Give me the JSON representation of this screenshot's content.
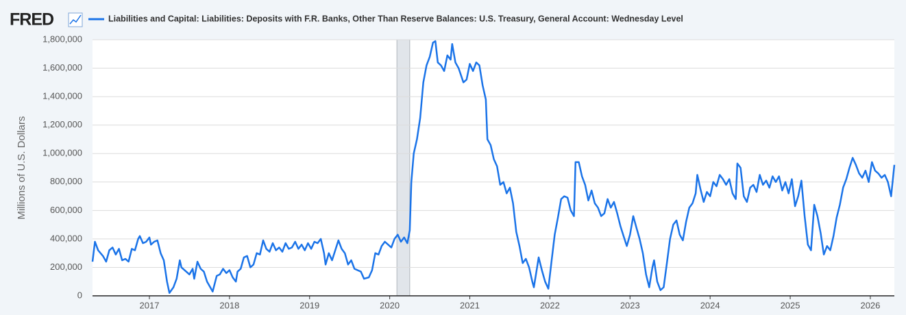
{
  "logo": "FRED",
  "chart_data": {
    "type": "line",
    "series": [
      {
        "name": "Liabilities and Capital: Liabilities: Deposits with F.R. Banks, Other Than Reserve Balances: U.S. Treasury, General Account: Wednesday Level",
        "color": "#1a73e8",
        "values": [
          240000,
          380000,
          320000,
          280000,
          240000,
          320000,
          340000,
          290000,
          330000,
          250000,
          260000,
          240000,
          330000,
          320000,
          400000,
          420000,
          370000,
          380000,
          410000,
          360000,
          380000,
          390000,
          300000,
          250000,
          100000,
          20000,
          60000,
          120000,
          250000,
          200000,
          170000,
          150000,
          190000,
          120000,
          240000,
          190000,
          170000,
          100000,
          60000,
          30000,
          140000,
          150000,
          190000,
          160000,
          180000,
          130000,
          100000,
          170000,
          190000,
          270000,
          280000,
          200000,
          220000,
          300000,
          290000,
          390000,
          330000,
          310000,
          370000,
          320000,
          340000,
          310000,
          370000,
          330000,
          340000,
          380000,
          330000,
          360000,
          320000,
          370000,
          330000,
          380000,
          370000,
          400000,
          300000,
          220000,
          300000,
          250000,
          320000,
          390000,
          330000,
          300000,
          220000,
          250000,
          190000,
          180000,
          170000,
          120000,
          130000,
          180000,
          300000,
          290000,
          350000,
          380000,
          360000,
          340000,
          400000,
          430000,
          380000,
          410000,
          370000,
          460000,
          800000,
          1000000,
          1100000,
          1250000,
          1500000,
          1620000,
          1680000,
          1780000,
          1790000,
          1640000,
          1620000,
          1580000,
          1690000,
          1660000,
          1770000,
          1640000,
          1600000,
          1500000,
          1520000,
          1630000,
          1580000,
          1640000,
          1620000,
          1480000,
          1380000,
          1100000,
          1060000,
          960000,
          910000,
          780000,
          800000,
          720000,
          760000,
          650000,
          450000,
          350000,
          230000,
          260000,
          200000,
          100000,
          60000,
          200000,
          270000,
          180000,
          100000,
          50000,
          240000,
          430000,
          550000,
          680000,
          700000,
          690000,
          600000,
          560000,
          940000,
          940000,
          840000,
          780000,
          670000,
          740000,
          650000,
          620000,
          560000,
          580000,
          680000,
          620000,
          660000,
          580000,
          490000,
          420000,
          350000,
          430000,
          560000,
          480000,
          400000,
          300000,
          150000,
          60000,
          200000,
          250000,
          100000,
          40000,
          60000,
          230000,
          400000,
          500000,
          530000,
          430000,
          390000,
          520000,
          620000,
          650000,
          720000,
          850000,
          750000,
          660000,
          730000,
          700000,
          800000,
          770000,
          850000,
          820000,
          780000,
          820000,
          720000,
          680000,
          930000,
          900000,
          700000,
          660000,
          760000,
          780000,
          730000,
          850000,
          780000,
          810000,
          760000,
          840000,
          800000,
          840000,
          740000,
          800000,
          720000,
          820000,
          630000,
          700000,
          810000,
          560000,
          360000,
          320000,
          640000,
          560000,
          440000,
          290000,
          350000,
          320000,
          420000,
          550000,
          640000,
          760000,
          820000,
          900000,
          970000,
          920000,
          860000,
          830000,
          880000,
          800000,
          940000,
          880000,
          860000,
          830000,
          850000,
          800000,
          700000,
          920000
        ]
      }
    ],
    "x": [
      2016.29,
      2016.32,
      2016.36,
      2016.42,
      2016.46,
      2016.5,
      2016.54,
      2016.58,
      2016.62,
      2016.66,
      2016.7,
      2016.74,
      2016.78,
      2016.82,
      2016.86,
      2016.88,
      2016.92,
      2016.96,
      2017.0,
      2017.02,
      2017.06,
      2017.1,
      2017.14,
      2017.18,
      2017.22,
      2017.25,
      2017.3,
      2017.34,
      2017.38,
      2017.4,
      2017.46,
      2017.5,
      2017.54,
      2017.56,
      2017.6,
      2017.64,
      2017.68,
      2017.72,
      2017.76,
      2017.79,
      2017.84,
      2017.88,
      2017.92,
      2017.96,
      2018.0,
      2018.04,
      2018.08,
      2018.1,
      2018.14,
      2018.18,
      2018.22,
      2018.26,
      2018.3,
      2018.34,
      2018.38,
      2018.42,
      2018.46,
      2018.5,
      2018.54,
      2018.58,
      2018.62,
      2018.66,
      2018.7,
      2018.74,
      2018.78,
      2018.82,
      2018.86,
      2018.9,
      2018.94,
      2018.98,
      2019.02,
      2019.06,
      2019.1,
      2019.14,
      2019.18,
      2019.2,
      2019.24,
      2019.28,
      2019.32,
      2019.36,
      2019.4,
      2019.44,
      2019.48,
      2019.52,
      2019.56,
      2019.6,
      2019.64,
      2019.68,
      2019.74,
      2019.78,
      2019.82,
      2019.86,
      2019.9,
      2019.94,
      2019.98,
      2020.02,
      2020.06,
      2020.1,
      2020.14,
      2020.18,
      2020.22,
      2020.25,
      2020.27,
      2020.3,
      2020.34,
      2020.38,
      2020.42,
      2020.46,
      2020.5,
      2020.54,
      2020.57,
      2020.6,
      2020.64,
      2020.68,
      2020.72,
      2020.76,
      2020.78,
      2020.82,
      2020.86,
      2020.92,
      2020.96,
      2021.0,
      2021.04,
      2021.08,
      2021.12,
      2021.16,
      2021.2,
      2021.22,
      2021.26,
      2021.3,
      2021.34,
      2021.38,
      2021.42,
      2021.46,
      2021.5,
      2021.54,
      2021.58,
      2021.62,
      2021.66,
      2021.7,
      2021.74,
      2021.78,
      2021.8,
      2021.84,
      2021.86,
      2021.9,
      2021.94,
      2021.98,
      2022.02,
      2022.06,
      2022.1,
      2022.14,
      2022.18,
      2022.22,
      2022.26,
      2022.3,
      2022.32,
      2022.36,
      2022.4,
      2022.44,
      2022.48,
      2022.52,
      2022.56,
      2022.6,
      2022.64,
      2022.68,
      2022.72,
      2022.76,
      2022.8,
      2022.84,
      2022.88,
      2022.92,
      2022.96,
      2023.0,
      2023.04,
      2023.08,
      2023.12,
      2023.16,
      2023.2,
      2023.24,
      2023.28,
      2023.3,
      2023.34,
      2023.38,
      2023.42,
      2023.46,
      2023.5,
      2023.54,
      2023.58,
      2023.62,
      2023.66,
      2023.7,
      2023.74,
      2023.78,
      2023.82,
      2023.84,
      2023.88,
      2023.92,
      2023.96,
      2024.0,
      2024.04,
      2024.08,
      2024.12,
      2024.16,
      2024.2,
      2024.24,
      2024.28,
      2024.32,
      2024.34,
      2024.38,
      2024.42,
      2024.46,
      2024.5,
      2024.54,
      2024.58,
      2024.62,
      2024.66,
      2024.7,
      2024.74,
      2024.78,
      2024.82,
      2024.86,
      2024.9,
      2024.94,
      2024.98,
      2025.02,
      2025.06,
      2025.1,
      2025.14,
      2025.18,
      2025.22,
      2025.26,
      2025.3,
      2025.34,
      2025.38,
      2025.42,
      2025.46,
      2025.5,
      2025.54,
      2025.58,
      2025.62,
      2025.66,
      2025.7,
      2025.74,
      2025.78,
      2025.82,
      2025.86,
      2025.9,
      2025.94,
      2025.98,
      2026.02,
      2026.06,
      2026.1,
      2026.14,
      2026.18,
      2026.22,
      2026.26,
      2026.3
    ],
    "ylabel": "Millions of U.S. Dollars",
    "xlim": [
      2016.29,
      2026.3
    ],
    "xticks": [
      2017,
      2018,
      2019,
      2020,
      2021,
      2022,
      2023,
      2024,
      2025,
      2026
    ],
    "ylim": [
      0,
      1800000
    ],
    "yticks": [
      0,
      {
        "value": 200000,
        "label": "200,000"
      },
      {
        "value": 400000,
        "label": "400,000"
      },
      {
        "value": 600000,
        "label": "600,000"
      },
      {
        "value": 800000,
        "label": "800,000"
      },
      {
        "value": 1000000,
        "label": "1,000,000"
      },
      {
        "value": 1200000,
        "label": "1,200,000"
      },
      {
        "value": 1400000,
        "label": "1,400,000"
      },
      {
        "value": 1600000,
        "label": "1,600,000"
      },
      {
        "value": 1800000,
        "label": "1,800,000"
      }
    ],
    "shaded_range": [
      2020.09,
      2020.25
    ],
    "grid": true
  }
}
